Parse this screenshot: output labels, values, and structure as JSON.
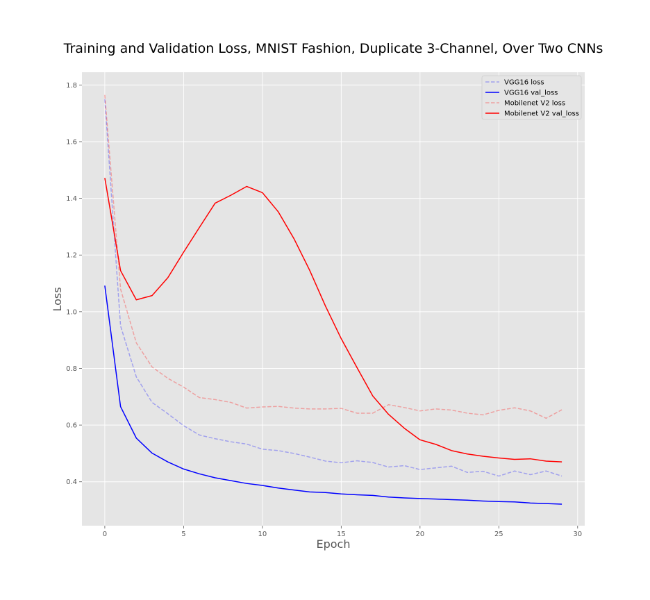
{
  "chart_data": {
    "type": "line",
    "title": "Training and Validation Loss, MNIST Fashion, Duplicate 3-Channel, Over Two CNNs",
    "xlabel": "Epoch",
    "ylabel": "Loss",
    "xlim": [
      -1.45,
      30.45
    ],
    "ylim": [
      0.245,
      1.845
    ],
    "xticks": [
      0,
      5,
      10,
      15,
      20,
      25,
      30
    ],
    "yticks": [
      0.4,
      0.6,
      0.8,
      1.0,
      1.2,
      1.4,
      1.6,
      1.8
    ],
    "xtick_labels": [
      "0",
      "5",
      "10",
      "15",
      "20",
      "25",
      "30"
    ],
    "ytick_labels": [
      "0.4",
      "0.6",
      "0.8",
      "1.0",
      "1.2",
      "1.4",
      "1.6",
      "1.8"
    ],
    "grid": true,
    "background": "#e5e5e5",
    "legend_position": "top-right",
    "x": [
      0,
      1,
      2,
      3,
      4,
      5,
      6,
      7,
      8,
      9,
      10,
      11,
      12,
      13,
      14,
      15,
      16,
      17,
      18,
      19,
      20,
      21,
      22,
      23,
      24,
      25,
      26,
      27,
      28,
      29
    ],
    "series": [
      {
        "name": "VGG16 loss",
        "color": "#0000ff",
        "opacity": 0.3,
        "style": "dashed",
        "values": [
          1.75,
          0.95,
          0.77,
          0.68,
          0.64,
          0.598,
          0.565,
          0.552,
          0.541,
          0.533,
          0.515,
          0.51,
          0.5,
          0.487,
          0.473,
          0.467,
          0.474,
          0.468,
          0.452,
          0.457,
          0.443,
          0.449,
          0.455,
          0.433,
          0.437,
          0.42,
          0.438,
          0.425,
          0.438,
          0.42
        ]
      },
      {
        "name": "VGG16 val_loss",
        "color": "#0000ff",
        "opacity": 1,
        "style": "solid",
        "values": [
          1.092,
          0.665,
          0.554,
          0.501,
          0.47,
          0.445,
          0.428,
          0.414,
          0.404,
          0.394,
          0.387,
          0.378,
          0.371,
          0.364,
          0.362,
          0.357,
          0.354,
          0.352,
          0.346,
          0.343,
          0.341,
          0.339,
          0.337,
          0.335,
          0.332,
          0.33,
          0.329,
          0.325,
          0.323,
          0.321
        ]
      },
      {
        "name": "Mobilenet V2 loss",
        "color": "#ff0000",
        "opacity": 0.3,
        "style": "dashed",
        "values": [
          1.765,
          1.08,
          0.89,
          0.805,
          0.765,
          0.734,
          0.697,
          0.69,
          0.68,
          0.66,
          0.664,
          0.666,
          0.66,
          0.657,
          0.657,
          0.659,
          0.642,
          0.642,
          0.672,
          0.662,
          0.65,
          0.657,
          0.653,
          0.642,
          0.636,
          0.652,
          0.661,
          0.65,
          0.624,
          0.654
        ]
      },
      {
        "name": "Mobilenet V2 val_loss",
        "color": "#ff0000",
        "opacity": 1,
        "style": "solid",
        "values": [
          1.472,
          1.145,
          1.042,
          1.057,
          1.12,
          1.21,
          1.297,
          1.383,
          1.411,
          1.442,
          1.42,
          1.353,
          1.258,
          1.146,
          1.02,
          0.905,
          0.803,
          0.703,
          0.638,
          0.589,
          0.548,
          0.532,
          0.51,
          0.498,
          0.49,
          0.484,
          0.479,
          0.481,
          0.473,
          0.47
        ]
      }
    ]
  }
}
